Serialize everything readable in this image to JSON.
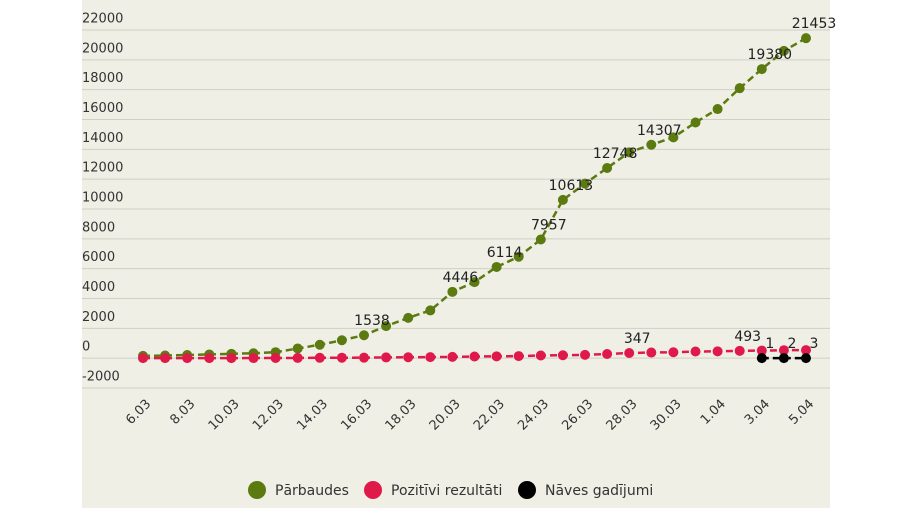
{
  "chart_data": {
    "type": "line",
    "categories": [
      "6.03",
      null,
      "8.03",
      null,
      "10.03",
      null,
      "12.03",
      null,
      "14.03",
      null,
      "16.03",
      null,
      "18.03",
      null,
      "20.03",
      null,
      "22.03",
      null,
      "24.03",
      null,
      "26.03",
      null,
      "28.03",
      null,
      "30.03",
      null,
      "1.04",
      null,
      "3.04",
      null,
      "5.04"
    ],
    "series": [
      {
        "name": "Pārbaudes",
        "color": "#5b7a10",
        "values": [
          150,
          180,
          210,
          250,
          290,
          330,
          400,
          650,
          900,
          1200,
          1538,
          2150,
          2700,
          3200,
          4446,
          5100,
          6114,
          6800,
          7957,
          10613,
          11700,
          12748,
          13800,
          14307,
          14800,
          15800,
          16700,
          18100,
          19380,
          20600,
          21453
        ],
        "value_labels": [
          null,
          null,
          null,
          null,
          null,
          null,
          null,
          null,
          null,
          null,
          "1538",
          null,
          null,
          null,
          "4446",
          null,
          "6114",
          null,
          "7957",
          "10613",
          null,
          "12748",
          null,
          "14307",
          null,
          null,
          null,
          null,
          "19380",
          null,
          "21453"
        ]
      },
      {
        "name": "Pozitīvi rezultāti",
        "color": "#e0194b",
        "values": [
          1,
          1,
          2,
          5,
          6,
          8,
          10,
          16,
          26,
          30,
          34,
          49,
          60,
          71,
          86,
          111,
          124,
          139,
          180,
          197,
          221,
          280,
          347,
          376,
          398,
          446,
          458,
          493,
          509,
          533,
          542
        ],
        "value_labels": [
          null,
          null,
          null,
          null,
          null,
          null,
          null,
          null,
          null,
          null,
          null,
          null,
          null,
          null,
          null,
          null,
          null,
          null,
          null,
          null,
          null,
          null,
          "347",
          null,
          null,
          null,
          null,
          "493",
          null,
          null,
          null
        ]
      },
      {
        "name": "Nāves gadījumi",
        "color": "#000000",
        "values": [
          null,
          null,
          null,
          null,
          null,
          null,
          null,
          null,
          null,
          null,
          null,
          null,
          null,
          null,
          null,
          null,
          null,
          null,
          null,
          null,
          null,
          null,
          null,
          null,
          null,
          null,
          null,
          null,
          1,
          2,
          3
        ],
        "value_labels": [
          null,
          null,
          null,
          null,
          null,
          null,
          null,
          null,
          null,
          null,
          null,
          null,
          null,
          null,
          null,
          null,
          null,
          null,
          null,
          null,
          null,
          null,
          null,
          null,
          null,
          null,
          null,
          null,
          "1",
          "2",
          "3"
        ]
      }
    ],
    "ylim": [
      -2000,
      22000
    ],
    "yticks": [
      -2000,
      0,
      2000,
      4000,
      6000,
      8000,
      10000,
      12000,
      14000,
      16000,
      18000,
      20000,
      22000
    ],
    "grid": true
  }
}
